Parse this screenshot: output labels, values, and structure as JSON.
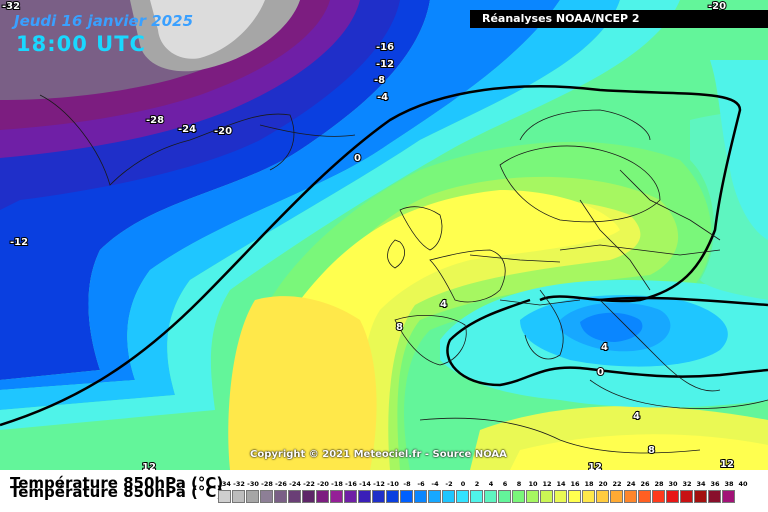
{
  "header": {
    "date": "Jeudi 16 janvier 2025",
    "time": "18:00 UTC",
    "source": "Réanalyses NOAA/NCEP 2"
  },
  "footer": {
    "copyright": "Copyright © 2021 Meteociel.fr - Source NOAA",
    "legend_title": "Température 850hPa (°C)"
  },
  "legend": {
    "labels": [
      "-34",
      "-32",
      "-30",
      "-28",
      "-26",
      "-24",
      "-22",
      "-20",
      "-18",
      "-16",
      "-14",
      "-12",
      "-10",
      "-8",
      "-6",
      "-4",
      "-2",
      "0",
      "2",
      "4",
      "6",
      "8",
      "10",
      "12",
      "14",
      "16",
      "18",
      "20",
      "22",
      "24",
      "26",
      "28",
      "30",
      "32",
      "34",
      "36",
      "38",
      "40"
    ],
    "colors": [
      "#cfcfcf",
      "#bdbdbd",
      "#a6a6a6",
      "#8d7f96",
      "#7a5f86",
      "#6a3f76",
      "#5e2668",
      "#7c1d80",
      "#951f97",
      "#6f1fa6",
      "#3a1fb8",
      "#1f2fc9",
      "#0a3fe0",
      "#0060ff",
      "#0a86ff",
      "#17a8ff",
      "#1fc6ff",
      "#33e3ff",
      "#4ff3e9",
      "#5ef5c0",
      "#63f59a",
      "#7af77a",
      "#a6f761",
      "#cbf654",
      "#eaf954",
      "#ffff4f",
      "#ffe84a",
      "#ffcc3f",
      "#ffaa33",
      "#ff862b",
      "#ff5f22",
      "#ff3a1c",
      "#e81616",
      "#c81214",
      "#a3100f",
      "#880f2b",
      "#a21277",
      "#e81fe0"
    ]
  },
  "contour_labels": [
    {
      "text": "-32"
    },
    {
      "text": "-20"
    },
    {
      "text": "-16"
    },
    {
      "text": "-12"
    },
    {
      "text": "-8"
    },
    {
      "text": "-4"
    },
    {
      "text": "-28"
    },
    {
      "text": "-24"
    },
    {
      "text": "-20"
    },
    {
      "text": "0"
    },
    {
      "text": "-12"
    },
    {
      "text": "4"
    },
    {
      "text": "8"
    },
    {
      "text": "4"
    },
    {
      "text": "0"
    },
    {
      "text": "4"
    },
    {
      "text": "8"
    },
    {
      "text": "12"
    },
    {
      "text": "12"
    },
    {
      "text": "12"
    }
  ]
}
